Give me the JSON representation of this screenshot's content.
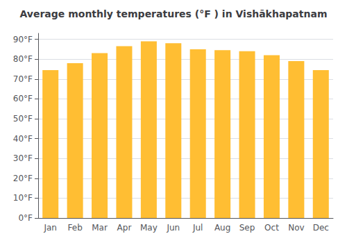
{
  "chart_data": {
    "type": "bar",
    "title": "Average monthly temperatures (°F ) in Vishākhapatnam",
    "categories": [
      "Jan",
      "Feb",
      "Mar",
      "Apr",
      "May",
      "Jun",
      "Jul",
      "Aug",
      "Sep",
      "Oct",
      "Nov",
      "Dec"
    ],
    "values": [
      74.5,
      78,
      83,
      86.5,
      89,
      88,
      85,
      84.5,
      84,
      82,
      79,
      74.5
    ],
    "color": "#FFBE33",
    "ylim": [
      0,
      93
    ],
    "yticks": [
      {
        "value": 0,
        "label": "0°F"
      },
      {
        "value": 10,
        "label": "10°F"
      },
      {
        "value": 20,
        "label": "20°F"
      },
      {
        "value": 30,
        "label": "30°F"
      },
      {
        "value": 40,
        "label": "40°F"
      },
      {
        "value": 50,
        "label": "50°F"
      },
      {
        "value": 60,
        "label": "60°F"
      },
      {
        "value": 70,
        "label": "70°F"
      },
      {
        "value": 80,
        "label": "80°F"
      },
      {
        "value": 90,
        "label": "90°F"
      }
    ],
    "grid": true
  }
}
